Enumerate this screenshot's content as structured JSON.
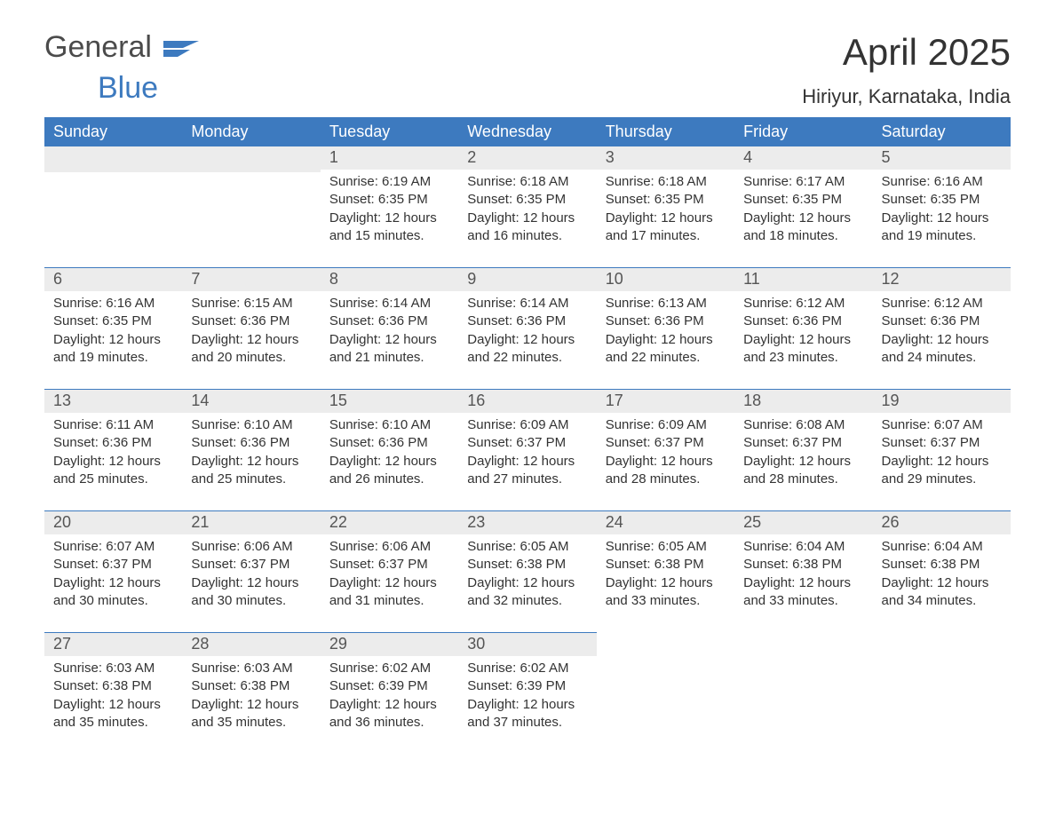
{
  "brand": {
    "word1": "General",
    "word2": "Blue",
    "flag_color": "#3d7abf",
    "text_gray": "#4b4b4b"
  },
  "title": "April 2025",
  "subtitle": "Hiriyur, Karnataka, India",
  "header_bg": "#3d7abf",
  "header_fg": "#ffffff",
  "daynum_bg": "#ececec",
  "cell_border": "#3d7abf",
  "page_bg": "#ffffff",
  "text_color": "#333333",
  "day_headers": [
    "Sunday",
    "Monday",
    "Tuesday",
    "Wednesday",
    "Thursday",
    "Friday",
    "Saturday"
  ],
  "first_weekday_index": 2,
  "days_in_month": 30,
  "days": [
    {
      "n": 1,
      "sunrise": "6:19 AM",
      "sunset": "6:35 PM",
      "daylight": "12 hours and 15 minutes."
    },
    {
      "n": 2,
      "sunrise": "6:18 AM",
      "sunset": "6:35 PM",
      "daylight": "12 hours and 16 minutes."
    },
    {
      "n": 3,
      "sunrise": "6:18 AM",
      "sunset": "6:35 PM",
      "daylight": "12 hours and 17 minutes."
    },
    {
      "n": 4,
      "sunrise": "6:17 AM",
      "sunset": "6:35 PM",
      "daylight": "12 hours and 18 minutes."
    },
    {
      "n": 5,
      "sunrise": "6:16 AM",
      "sunset": "6:35 PM",
      "daylight": "12 hours and 19 minutes."
    },
    {
      "n": 6,
      "sunrise": "6:16 AM",
      "sunset": "6:35 PM",
      "daylight": "12 hours and 19 minutes."
    },
    {
      "n": 7,
      "sunrise": "6:15 AM",
      "sunset": "6:36 PM",
      "daylight": "12 hours and 20 minutes."
    },
    {
      "n": 8,
      "sunrise": "6:14 AM",
      "sunset": "6:36 PM",
      "daylight": "12 hours and 21 minutes."
    },
    {
      "n": 9,
      "sunrise": "6:14 AM",
      "sunset": "6:36 PM",
      "daylight": "12 hours and 22 minutes."
    },
    {
      "n": 10,
      "sunrise": "6:13 AM",
      "sunset": "6:36 PM",
      "daylight": "12 hours and 22 minutes."
    },
    {
      "n": 11,
      "sunrise": "6:12 AM",
      "sunset": "6:36 PM",
      "daylight": "12 hours and 23 minutes."
    },
    {
      "n": 12,
      "sunrise": "6:12 AM",
      "sunset": "6:36 PM",
      "daylight": "12 hours and 24 minutes."
    },
    {
      "n": 13,
      "sunrise": "6:11 AM",
      "sunset": "6:36 PM",
      "daylight": "12 hours and 25 minutes."
    },
    {
      "n": 14,
      "sunrise": "6:10 AM",
      "sunset": "6:36 PM",
      "daylight": "12 hours and 25 minutes."
    },
    {
      "n": 15,
      "sunrise": "6:10 AM",
      "sunset": "6:36 PM",
      "daylight": "12 hours and 26 minutes."
    },
    {
      "n": 16,
      "sunrise": "6:09 AM",
      "sunset": "6:37 PM",
      "daylight": "12 hours and 27 minutes."
    },
    {
      "n": 17,
      "sunrise": "6:09 AM",
      "sunset": "6:37 PM",
      "daylight": "12 hours and 28 minutes."
    },
    {
      "n": 18,
      "sunrise": "6:08 AM",
      "sunset": "6:37 PM",
      "daylight": "12 hours and 28 minutes."
    },
    {
      "n": 19,
      "sunrise": "6:07 AM",
      "sunset": "6:37 PM",
      "daylight": "12 hours and 29 minutes."
    },
    {
      "n": 20,
      "sunrise": "6:07 AM",
      "sunset": "6:37 PM",
      "daylight": "12 hours and 30 minutes."
    },
    {
      "n": 21,
      "sunrise": "6:06 AM",
      "sunset": "6:37 PM",
      "daylight": "12 hours and 30 minutes."
    },
    {
      "n": 22,
      "sunrise": "6:06 AM",
      "sunset": "6:37 PM",
      "daylight": "12 hours and 31 minutes."
    },
    {
      "n": 23,
      "sunrise": "6:05 AM",
      "sunset": "6:38 PM",
      "daylight": "12 hours and 32 minutes."
    },
    {
      "n": 24,
      "sunrise": "6:05 AM",
      "sunset": "6:38 PM",
      "daylight": "12 hours and 33 minutes."
    },
    {
      "n": 25,
      "sunrise": "6:04 AM",
      "sunset": "6:38 PM",
      "daylight": "12 hours and 33 minutes."
    },
    {
      "n": 26,
      "sunrise": "6:04 AM",
      "sunset": "6:38 PM",
      "daylight": "12 hours and 34 minutes."
    },
    {
      "n": 27,
      "sunrise": "6:03 AM",
      "sunset": "6:38 PM",
      "daylight": "12 hours and 35 minutes."
    },
    {
      "n": 28,
      "sunrise": "6:03 AM",
      "sunset": "6:38 PM",
      "daylight": "12 hours and 35 minutes."
    },
    {
      "n": 29,
      "sunrise": "6:02 AM",
      "sunset": "6:39 PM",
      "daylight": "12 hours and 36 minutes."
    },
    {
      "n": 30,
      "sunrise": "6:02 AM",
      "sunset": "6:39 PM",
      "daylight": "12 hours and 37 minutes."
    }
  ],
  "labels": {
    "sunrise": "Sunrise: ",
    "sunset": "Sunset: ",
    "daylight": "Daylight: "
  }
}
